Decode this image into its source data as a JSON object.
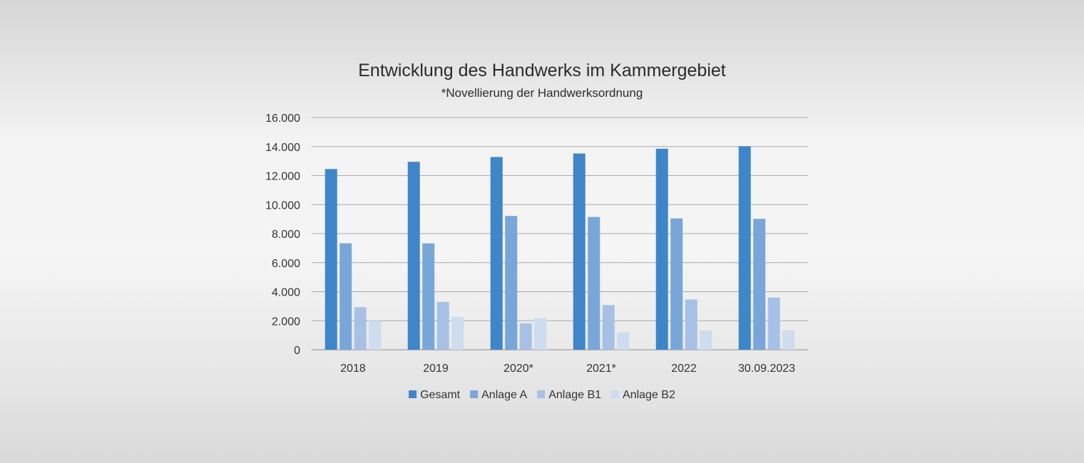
{
  "chart_data": {
    "type": "bar",
    "title": "Entwicklung des Handwerks im Kammergebiet",
    "subtitle": "*Novellierung der Handwerksordnung",
    "categories": [
      "2018",
      "2019",
      "2020*",
      "2021*",
      "2022",
      "30.09.2023"
    ],
    "series": [
      {
        "name": "Gesamt",
        "color": "#3f86c9",
        "values": [
          12450,
          12950,
          13280,
          13520,
          13850,
          14020
        ]
      },
      {
        "name": "Anlage A",
        "color": "#78a6d9",
        "values": [
          7330,
          7330,
          9220,
          9150,
          9050,
          9020
        ]
      },
      {
        "name": "Anlage B1",
        "color": "#a7c1e6",
        "values": [
          2930,
          3300,
          1820,
          3080,
          3460,
          3600
        ]
      },
      {
        "name": "Anlage B2",
        "color": "#cddcef",
        "values": [
          2000,
          2250,
          2180,
          1200,
          1320,
          1330
        ]
      }
    ],
    "ylim": [
      0,
      16000
    ],
    "yticks": [
      "0",
      "2.000",
      "4.000",
      "6.000",
      "8.000",
      "10.000",
      "12.000",
      "14.000",
      "16.000"
    ],
    "ytick_values": [
      0,
      2000,
      4000,
      6000,
      8000,
      10000,
      12000,
      14000,
      16000
    ],
    "grid": true,
    "legend_position": "bottom",
    "xlabel": "",
    "ylabel": ""
  }
}
